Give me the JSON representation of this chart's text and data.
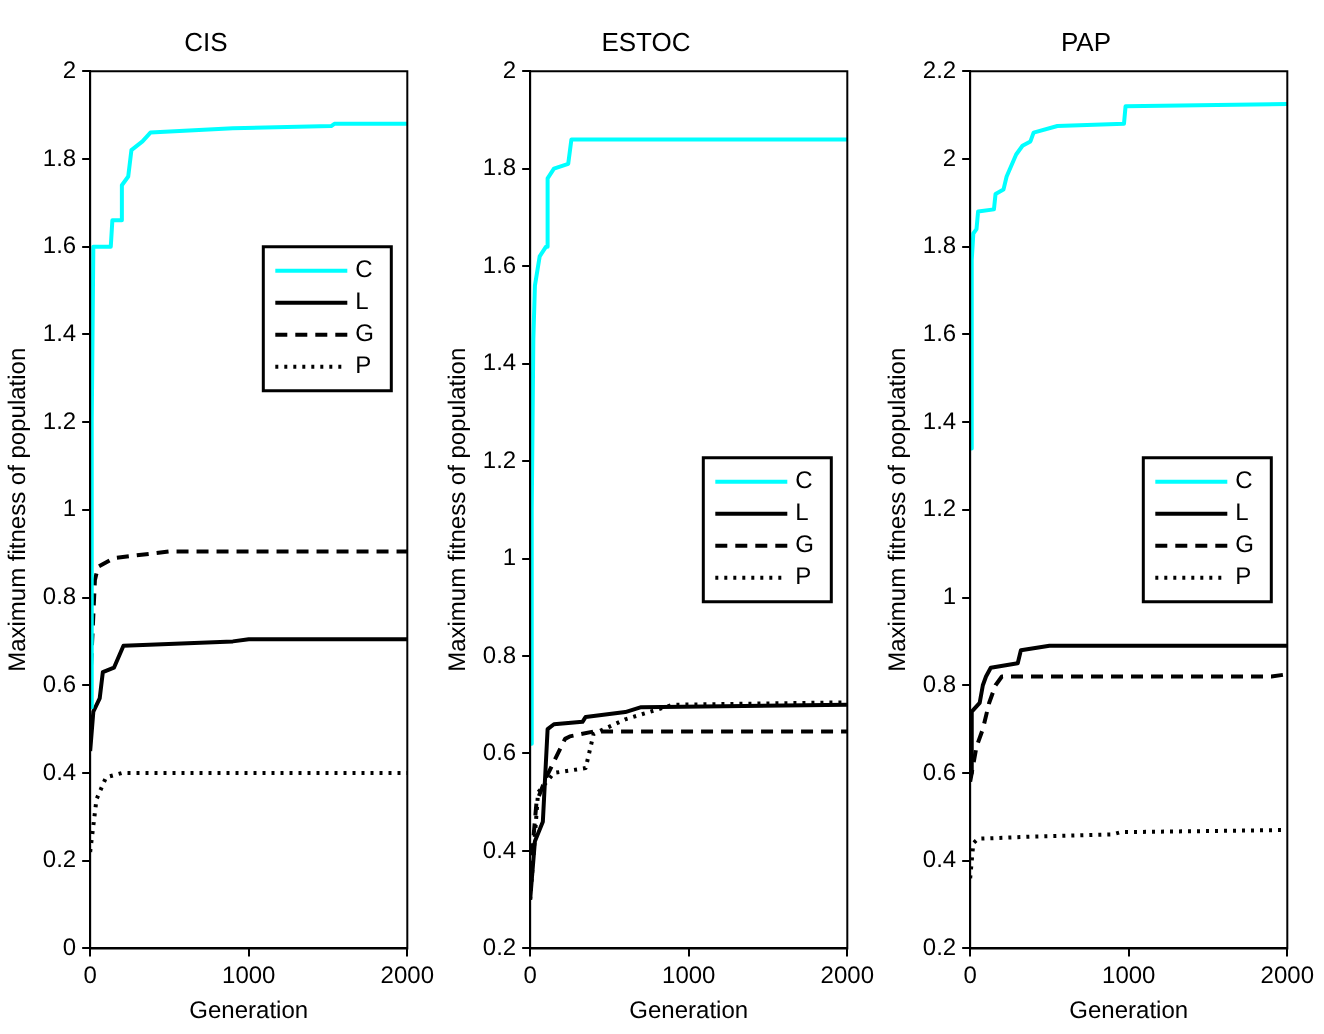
{
  "chart_data": [
    {
      "type": "line",
      "title": "CIS",
      "xlabel": "Generation",
      "ylabel": "Maximum fitness of population",
      "xlim": [
        0,
        2000
      ],
      "xticks": [
        0,
        1000,
        2000
      ],
      "ylim": [
        0,
        2
      ],
      "yticks": [
        0,
        0.2,
        0.4,
        0.6,
        0.8,
        1,
        1.2,
        1.4,
        1.6,
        1.8,
        2
      ],
      "grid": false,
      "legend": "top right",
      "marker": "none",
      "series": [
        {
          "name": "C",
          "color": "#00ffff",
          "line_style": "solid",
          "x": [
            0,
            10,
            20,
            130,
            140,
            190,
            200,
            240,
            260,
            330,
            380,
            900,
            1520,
            1540,
            2000
          ],
          "values": [
            0.55,
            1.2,
            1.6,
            1.6,
            1.66,
            1.66,
            1.74,
            1.76,
            1.82,
            1.84,
            1.86,
            1.87,
            1.875,
            1.88,
            1.88
          ]
        },
        {
          "name": "L",
          "color": "#000000",
          "line_style": "solid",
          "x": [
            0,
            20,
            60,
            80,
            150,
            210,
            900,
            1000,
            2000
          ],
          "values": [
            0.45,
            0.54,
            0.57,
            0.63,
            0.64,
            0.69,
            0.7,
            0.705,
            0.705
          ]
        },
        {
          "name": "G",
          "color": "#000000",
          "line_style": "dashed",
          "x": [
            0,
            30,
            50,
            150,
            500,
            2000
          ],
          "values": [
            0.6,
            0.84,
            0.87,
            0.89,
            0.905,
            0.905
          ]
        },
        {
          "name": "P",
          "color": "#000000",
          "line_style": "dotted",
          "x": [
            0,
            40,
            100,
            200,
            2000
          ],
          "values": [
            0.22,
            0.34,
            0.39,
            0.4,
            0.4
          ]
        }
      ]
    },
    {
      "type": "line",
      "title": "ESTOC",
      "xlabel": "Generation",
      "ylabel": "Maximum fitness of population",
      "xlim": [
        0,
        2000
      ],
      "xticks": [
        0,
        1000,
        2000
      ],
      "ylim": [
        0.2,
        2
      ],
      "yticks": [
        0.2,
        0.4,
        0.6,
        0.8,
        1,
        1.2,
        1.4,
        1.6,
        1.8,
        2
      ],
      "grid": false,
      "legend": "center right",
      "marker": "none",
      "series": [
        {
          "name": "C",
          "color": "#00ffff",
          "line_style": "solid",
          "x": [
            0,
            10,
            20,
            30,
            60,
            100,
            110,
            150,
            240,
            260,
            2000
          ],
          "values": [
            0.62,
            1.1,
            1.45,
            1.56,
            1.62,
            1.64,
            1.78,
            1.8,
            1.81,
            1.86,
            1.86
          ]
        },
        {
          "name": "L",
          "color": "#000000",
          "line_style": "solid",
          "x": [
            0,
            30,
            80,
            110,
            150,
            330,
            350,
            600,
            700,
            2000
          ],
          "values": [
            0.3,
            0.42,
            0.46,
            0.65,
            0.66,
            0.665,
            0.675,
            0.685,
            0.695,
            0.7
          ]
        },
        {
          "name": "G",
          "color": "#000000",
          "line_style": "dashed",
          "x": [
            0,
            40,
            100,
            220,
            250,
            400,
            2000
          ],
          "values": [
            0.35,
            0.5,
            0.55,
            0.63,
            0.635,
            0.645,
            0.645
          ]
        },
        {
          "name": "P",
          "color": "#000000",
          "line_style": "dotted",
          "x": [
            0,
            50,
            150,
            350,
            400,
            600,
            900,
            2000
          ],
          "values": [
            0.3,
            0.52,
            0.56,
            0.57,
            0.64,
            0.67,
            0.7,
            0.705
          ]
        }
      ]
    },
    {
      "type": "line",
      "title": "PAP",
      "xlabel": "Generation",
      "ylabel": "Maximum fitness of population",
      "xlim": [
        0,
        2000
      ],
      "xticks": [
        0,
        1000,
        2000
      ],
      "ylim": [
        0.2,
        2.2
      ],
      "yticks": [
        0.2,
        0.4,
        0.6,
        0.8,
        1,
        1.2,
        1.4,
        1.6,
        1.8,
        2,
        2.2
      ],
      "grid": false,
      "legend": "center right",
      "marker": "none",
      "series": [
        {
          "name": "C",
          "color": "#00ffff",
          "line_style": "solid",
          "x": [
            0,
            10,
            20,
            40,
            50,
            150,
            160,
            210,
            230,
            290,
            330,
            380,
            400,
            550,
            970,
            980,
            2000
          ],
          "values": [
            1.34,
            1.77,
            1.83,
            1.84,
            1.88,
            1.885,
            1.92,
            1.93,
            1.96,
            2.01,
            2.03,
            2.04,
            2.06,
            2.075,
            2.08,
            2.12,
            2.125
          ]
        },
        {
          "name": "L",
          "color": "#000000",
          "line_style": "solid",
          "x": [
            0,
            10,
            60,
            80,
            100,
            130,
            300,
            320,
            500,
            2000
          ],
          "values": [
            0.6,
            0.74,
            0.76,
            0.8,
            0.82,
            0.84,
            0.85,
            0.88,
            0.89,
            0.89
          ]
        },
        {
          "name": "G",
          "color": "#000000",
          "line_style": "dashed",
          "x": [
            0,
            40,
            80,
            120,
            160,
            200,
            1900,
            2000
          ],
          "values": [
            0.58,
            0.66,
            0.7,
            0.76,
            0.8,
            0.82,
            0.82,
            0.825
          ]
        },
        {
          "name": "P",
          "color": "#000000",
          "line_style": "dotted",
          "x": [
            0,
            20,
            50,
            400,
            900,
            950,
            2000
          ],
          "values": [
            0.36,
            0.44,
            0.45,
            0.455,
            0.46,
            0.465,
            0.47
          ]
        }
      ]
    }
  ]
}
